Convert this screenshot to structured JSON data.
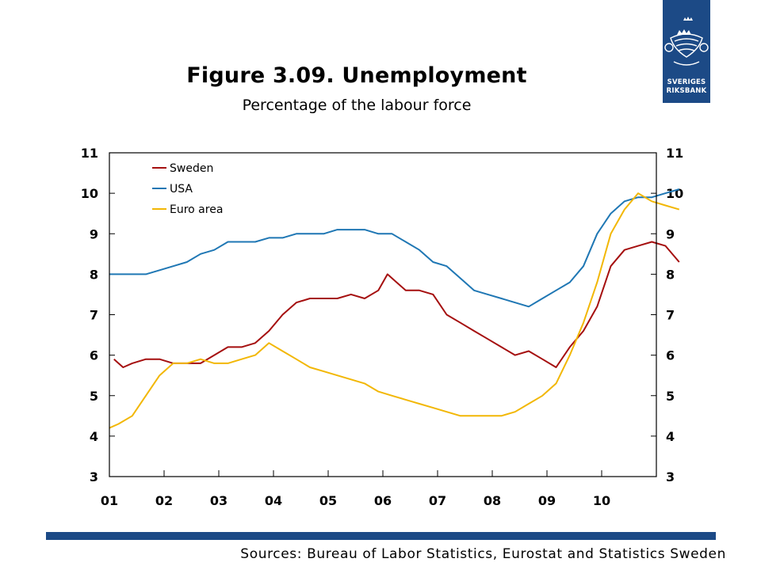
{
  "title": "Figure 3.09. Unemployment",
  "subtitle": "Percentage of the labour force",
  "sources": "Sources: Bureau of Labor Statistics, Eurostat and Statistics Sweden",
  "logo": {
    "line1": "SVERIGES",
    "line2": "RIKSBANK",
    "icon": "crowned-arms-icon"
  },
  "colors": {
    "sweden": "#a50f0f",
    "usa": "#1f77b4",
    "euro": "#f2b705",
    "brand": "#1c4a86"
  },
  "chart_data": {
    "type": "line",
    "title": "Figure 3.09. Unemployment",
    "subtitle": "Percentage of the labour force",
    "xlabel": "",
    "ylabel": "",
    "ylim": [
      3,
      11
    ],
    "yticks": [
      "3",
      "4",
      "5",
      "6",
      "7",
      "8",
      "9",
      "10",
      "11"
    ],
    "xlim": [
      "2001-01",
      "2010-12"
    ],
    "xticks": [
      "01",
      "02",
      "03",
      "04",
      "05",
      "06",
      "07",
      "08",
      "09",
      "10"
    ],
    "grid": false,
    "legend": "top-left",
    "series": [
      {
        "name": "Sweden",
        "color": "#a50f0f",
        "points": [
          [
            "2001-02",
            5.9
          ],
          [
            "2001-03",
            5.8
          ],
          [
            "2001-04",
            5.7
          ],
          [
            "2001-06",
            5.8
          ],
          [
            "2001-09",
            5.9
          ],
          [
            "2001-12",
            5.9
          ],
          [
            "2002-03",
            5.8
          ],
          [
            "2002-06",
            5.8
          ],
          [
            "2002-09",
            5.8
          ],
          [
            "2002-12",
            6.0
          ],
          [
            "2003-03",
            6.2
          ],
          [
            "2003-06",
            6.2
          ],
          [
            "2003-09",
            6.3
          ],
          [
            "2003-12",
            6.6
          ],
          [
            "2004-03",
            7.0
          ],
          [
            "2004-06",
            7.3
          ],
          [
            "2004-09",
            7.4
          ],
          [
            "2004-12",
            7.4
          ],
          [
            "2005-03",
            7.4
          ],
          [
            "2005-06",
            7.5
          ],
          [
            "2005-09",
            7.4
          ],
          [
            "2005-12",
            7.6
          ],
          [
            "2006-02",
            8.0
          ],
          [
            "2006-04",
            7.8
          ],
          [
            "2006-06",
            7.6
          ],
          [
            "2006-09",
            7.6
          ],
          [
            "2006-12",
            7.5
          ],
          [
            "2007-03",
            7.0
          ],
          [
            "2007-06",
            6.8
          ],
          [
            "2007-09",
            6.6
          ],
          [
            "2007-12",
            6.4
          ],
          [
            "2008-03",
            6.2
          ],
          [
            "2008-06",
            6.0
          ],
          [
            "2008-09",
            6.1
          ],
          [
            "2008-12",
            5.9
          ],
          [
            "2009-03",
            5.7
          ],
          [
            "2009-06",
            6.2
          ],
          [
            "2009-09",
            6.6
          ],
          [
            "2009-12",
            7.2
          ],
          [
            "2010-03",
            8.2
          ],
          [
            "2010-06",
            8.6
          ],
          [
            "2010-09",
            8.7
          ],
          [
            "2010-12",
            8.8
          ],
          [
            "2011-03",
            8.7
          ],
          [
            "2011-06",
            8.3
          ]
        ]
      },
      {
        "name": "USA",
        "color": "#1f77b4",
        "points": [
          [
            "2001-01",
            8.0
          ],
          [
            "2001-06",
            8.0
          ],
          [
            "2001-09",
            8.0
          ],
          [
            "2001-12",
            8.1
          ],
          [
            "2002-03",
            8.2
          ],
          [
            "2002-06",
            8.3
          ],
          [
            "2002-09",
            8.5
          ],
          [
            "2002-12",
            8.6
          ],
          [
            "2003-03",
            8.8
          ],
          [
            "2003-06",
            8.8
          ],
          [
            "2003-09",
            8.8
          ],
          [
            "2003-12",
            8.9
          ],
          [
            "2004-03",
            8.9
          ],
          [
            "2004-06",
            9.0
          ],
          [
            "2004-09",
            9.0
          ],
          [
            "2004-12",
            9.0
          ],
          [
            "2005-03",
            9.1
          ],
          [
            "2005-06",
            9.1
          ],
          [
            "2005-09",
            9.1
          ],
          [
            "2005-12",
            9.0
          ],
          [
            "2006-03",
            9.0
          ],
          [
            "2006-06",
            8.8
          ],
          [
            "2006-09",
            8.6
          ],
          [
            "2006-12",
            8.3
          ],
          [
            "2007-03",
            8.2
          ],
          [
            "2007-06",
            7.9
          ],
          [
            "2007-09",
            7.6
          ],
          [
            "2007-12",
            7.5
          ],
          [
            "2008-03",
            7.4
          ],
          [
            "2008-06",
            7.3
          ],
          [
            "2008-09",
            7.2
          ],
          [
            "2008-12",
            7.4
          ],
          [
            "2009-03",
            7.6
          ],
          [
            "2009-06",
            7.8
          ],
          [
            "2009-09",
            8.2
          ],
          [
            "2009-12",
            9.0
          ],
          [
            "2010-03",
            9.5
          ],
          [
            "2010-06",
            9.8
          ],
          [
            "2010-09",
            9.9
          ],
          [
            "2010-12",
            9.9
          ],
          [
            "2011-03",
            10.0
          ],
          [
            "2011-06",
            10.1
          ]
        ]
      },
      {
        "name": "Euro area",
        "color": "#f2b705",
        "points": [
          [
            "2001-01",
            4.2
          ],
          [
            "2001-03",
            4.3
          ],
          [
            "2001-06",
            4.5
          ],
          [
            "2001-09",
            5.0
          ],
          [
            "2001-12",
            5.5
          ],
          [
            "2002-03",
            5.8
          ],
          [
            "2002-06",
            5.8
          ],
          [
            "2002-09",
            5.9
          ],
          [
            "2002-12",
            5.8
          ],
          [
            "2003-03",
            5.8
          ],
          [
            "2003-06",
            5.9
          ],
          [
            "2003-09",
            6.0
          ],
          [
            "2003-12",
            6.3
          ],
          [
            "2004-03",
            6.1
          ],
          [
            "2004-06",
            5.9
          ],
          [
            "2004-09",
            5.7
          ],
          [
            "2004-12",
            5.6
          ],
          [
            "2005-03",
            5.5
          ],
          [
            "2005-06",
            5.4
          ],
          [
            "2005-09",
            5.3
          ],
          [
            "2005-12",
            5.1
          ],
          [
            "2006-03",
            5.0
          ],
          [
            "2006-06",
            4.9
          ],
          [
            "2006-09",
            4.8
          ],
          [
            "2006-12",
            4.7
          ],
          [
            "2007-03",
            4.6
          ],
          [
            "2007-06",
            4.5
          ],
          [
            "2007-09",
            4.5
          ],
          [
            "2007-12",
            4.5
          ],
          [
            "2008-03",
            4.5
          ],
          [
            "2008-06",
            4.6
          ],
          [
            "2008-09",
            4.8
          ],
          [
            "2008-12",
            5.0
          ],
          [
            "2009-03",
            5.3
          ],
          [
            "2009-06",
            6.0
          ],
          [
            "2009-09",
            6.8
          ],
          [
            "2009-12",
            7.8
          ],
          [
            "2010-03",
            9.0
          ],
          [
            "2010-06",
            9.6
          ],
          [
            "2010-09",
            10.0
          ],
          [
            "2010-12",
            9.8
          ],
          [
            "2011-03",
            9.7
          ],
          [
            "2011-06",
            9.6
          ]
        ]
      }
    ]
  }
}
